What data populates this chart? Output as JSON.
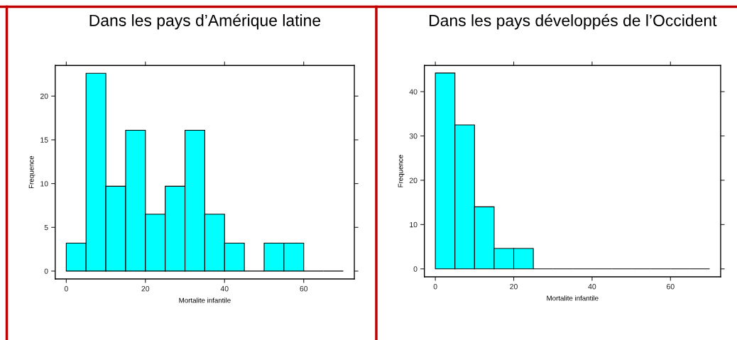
{
  "chart_data": [
    {
      "type": "histogram",
      "title": "Dans les pays d’Amérique latine",
      "xlabel": "Mortalite infantile",
      "ylabel": "Frequence",
      "bins": [
        0,
        5,
        10,
        15,
        20,
        25,
        30,
        35,
        40,
        45,
        50,
        55,
        60,
        65,
        70
      ],
      "values": [
        3.2,
        22.6,
        9.7,
        16.1,
        6.5,
        9.7,
        16.1,
        6.5,
        3.2,
        0,
        3.2,
        3.2,
        0,
        0
      ],
      "colors": [
        "#00ffff",
        "#00ffff",
        "#00ffff",
        "#00ffff",
        "#00ffff",
        "#00ffff",
        "#00ffff",
        "#00ffff",
        "#00ffff",
        "#000000",
        "#00ffff",
        "#00ffff",
        "#000000",
        "#000000"
      ],
      "xlim": [
        -2.8,
        72.8
      ],
      "ylim": [
        -0.9,
        23.5
      ],
      "xticks": [
        0,
        20,
        40,
        60
      ],
      "yticks": [
        0,
        5,
        10,
        15,
        20
      ]
    },
    {
      "type": "histogram",
      "title": "Dans les pays développés de l’Occident",
      "xlabel": "Mortalite infantile",
      "ylabel": "Frequence",
      "bins": [
        0,
        5,
        10,
        15,
        20,
        25,
        30,
        35,
        40,
        45,
        50,
        55,
        60,
        65,
        70
      ],
      "values": [
        44.2,
        32.5,
        14.0,
        4.6,
        4.6,
        0,
        0,
        0,
        0,
        0,
        0,
        0,
        0,
        0
      ],
      "colors": [
        "#00ffff",
        "#00ffff",
        "#00ffff",
        "#00ffff",
        "#00ffff",
        "#000000",
        "#000000",
        "#000000",
        "#000000",
        "#000000",
        "#000000",
        "#000000",
        "#000000",
        "#000000"
      ],
      "xlim": [
        -2.8,
        72.8
      ],
      "ylim": [
        -1.8,
        45.9
      ],
      "xticks": [
        0,
        20,
        40,
        60
      ],
      "yticks": [
        0,
        10,
        20,
        30,
        40
      ]
    }
  ]
}
